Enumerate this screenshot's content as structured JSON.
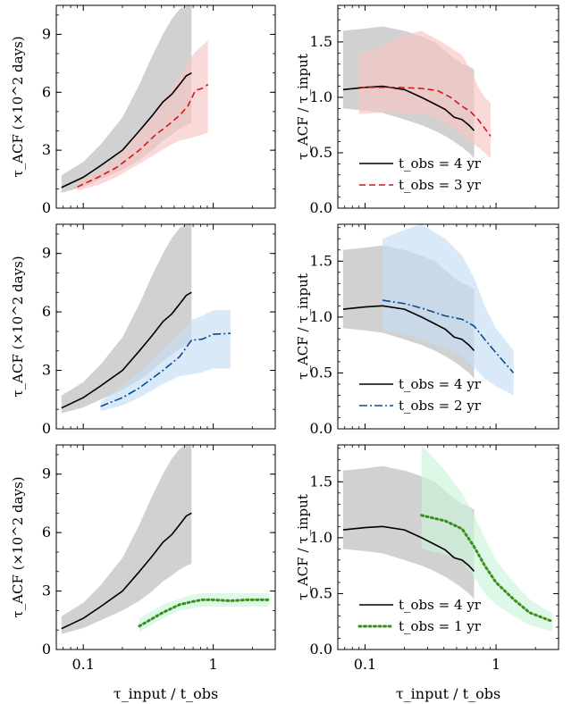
{
  "chart_data": [
    {
      "type": "line",
      "panel": "row1-left",
      "ylabel": "τ_ACF (×10^2 days)",
      "yticks": [
        "0",
        "3",
        "6",
        "9"
      ],
      "ylim": [
        0,
        10.5
      ],
      "xscale": "log",
      "xlim": [
        0.062,
        3.0
      ],
      "series": [
        {
          "label": "t_obs = 4 yr",
          "style": "solid",
          "color": "#000000",
          "band_color": "#bdbdbd",
          "x": [
            0.068,
            0.1,
            0.136,
            0.2,
            0.27,
            0.34,
            0.41,
            0.48,
            0.55,
            0.62,
            0.68
          ],
          "y": [
            1.07,
            1.6,
            2.2,
            3.0,
            4.0,
            4.8,
            5.5,
            5.9,
            6.4,
            6.85,
            7.0
          ],
          "band_lo": [
            0.8,
            1.1,
            1.5,
            2.0,
            2.5,
            3.0,
            3.5,
            3.8,
            4.1,
            4.3,
            4.4
          ],
          "band_hi": [
            1.7,
            2.4,
            3.3,
            4.7,
            6.4,
            7.9,
            9.0,
            9.8,
            10.3,
            10.5,
            10.5
          ]
        },
        {
          "label": "t_obs = 3 yr",
          "style": "dashed",
          "color": "#d61515",
          "band_color": "#f7c6c3",
          "x": [
            0.09,
            0.13,
            0.18,
            0.27,
            0.36,
            0.45,
            0.55,
            0.64,
            0.73,
            0.82,
            0.91
          ],
          "y": [
            1.1,
            1.6,
            2.1,
            3.0,
            3.8,
            4.3,
            4.8,
            5.3,
            6.1,
            6.2,
            6.4
          ],
          "band_lo": [
            0.9,
            1.2,
            1.6,
            2.3,
            2.8,
            3.2,
            3.5,
            3.6,
            3.7,
            3.8,
            3.9
          ],
          "band_hi": [
            1.2,
            1.9,
            2.6,
            4.0,
            5.1,
            6.0,
            6.9,
            7.6,
            8.1,
            8.4,
            8.7
          ]
        }
      ]
    },
    {
      "type": "line",
      "panel": "row1-right",
      "ylabel": "τ_ACF / τ_input",
      "yticks": [
        "0.0",
        "0.5",
        "1.0",
        "1.5"
      ],
      "ylim": [
        0,
        1.83
      ],
      "xscale": "log",
      "xlim": [
        0.062,
        3.0
      ],
      "legend": "lower-left",
      "series": [
        {
          "label": "t_obs = 4 yr",
          "style": "solid",
          "color": "#000000",
          "band_color": "#bdbdbd",
          "x": [
            0.068,
            0.1,
            0.136,
            0.2,
            0.27,
            0.34,
            0.41,
            0.48,
            0.55,
            0.62,
            0.68
          ],
          "y": [
            1.07,
            1.09,
            1.1,
            1.07,
            1.0,
            0.94,
            0.89,
            0.82,
            0.8,
            0.75,
            0.7
          ],
          "band_lo": [
            0.9,
            0.88,
            0.86,
            0.8,
            0.75,
            0.7,
            0.65,
            0.6,
            0.55,
            0.5,
            0.45
          ],
          "band_hi": [
            1.6,
            1.62,
            1.64,
            1.6,
            1.55,
            1.5,
            1.42,
            1.35,
            1.3,
            1.28,
            1.25
          ]
        },
        {
          "label": "t_obs = 3 yr",
          "style": "dashed",
          "color": "#d61515",
          "band_color": "#f7c6c3",
          "x": [
            0.09,
            0.13,
            0.18,
            0.27,
            0.36,
            0.45,
            0.55,
            0.64,
            0.73,
            0.82,
            0.91
          ],
          "y": [
            1.09,
            1.09,
            1.09,
            1.08,
            1.06,
            1.0,
            0.92,
            0.87,
            0.8,
            0.72,
            0.65
          ],
          "band_lo": [
            0.85,
            0.86,
            0.86,
            0.85,
            0.8,
            0.73,
            0.66,
            0.6,
            0.55,
            0.5,
            0.45
          ],
          "band_hi": [
            1.4,
            1.45,
            1.55,
            1.6,
            1.52,
            1.45,
            1.38,
            1.25,
            1.1,
            1.0,
            0.95
          ]
        }
      ]
    },
    {
      "type": "line",
      "panel": "row2-left",
      "ylabel": "τ_ACF (×10^2 days)",
      "yticks": [
        "0",
        "3",
        "6",
        "9"
      ],
      "ylim": [
        0,
        10.5
      ],
      "xscale": "log",
      "xlim": [
        0.062,
        3.0
      ],
      "series": [
        {
          "label": "t_obs = 4 yr",
          "style": "solid",
          "color": "#000000",
          "band_color": "#bdbdbd",
          "x": [
            0.068,
            0.1,
            0.136,
            0.2,
            0.27,
            0.34,
            0.41,
            0.48,
            0.55,
            0.62,
            0.68
          ],
          "y": [
            1.07,
            1.6,
            2.2,
            3.0,
            4.0,
            4.8,
            5.5,
            5.9,
            6.4,
            6.85,
            7.0
          ],
          "band_lo": [
            0.8,
            1.1,
            1.5,
            2.0,
            2.5,
            3.0,
            3.5,
            3.8,
            4.1,
            4.3,
            4.4
          ],
          "band_hi": [
            1.7,
            2.4,
            3.3,
            4.7,
            6.4,
            7.9,
            9.0,
            9.8,
            10.3,
            10.5,
            10.5
          ]
        },
        {
          "label": "t_obs = 2 yr",
          "style": "dashdot",
          "color": "#0b4a8f",
          "band_color": "#c6ddf5",
          "x": [
            0.136,
            0.2,
            0.27,
            0.41,
            0.55,
            0.68,
            0.82,
            1.0,
            1.36
          ],
          "y": [
            1.15,
            1.6,
            2.1,
            3.0,
            3.7,
            4.55,
            4.6,
            4.85,
            4.9
          ],
          "band_lo": [
            0.9,
            1.2,
            1.6,
            2.3,
            2.7,
            2.8,
            2.9,
            3.1,
            3.1
          ],
          "band_hi": [
            1.4,
            2.2,
            2.9,
            4.1,
            4.9,
            5.6,
            5.8,
            6.1,
            6.1
          ]
        }
      ]
    },
    {
      "type": "line",
      "panel": "row2-right",
      "ylabel": "τ_ACF / τ_input",
      "yticks": [
        "0.0",
        "0.5",
        "1.0",
        "1.5"
      ],
      "ylim": [
        0,
        1.83
      ],
      "xscale": "log",
      "xlim": [
        0.062,
        3.0
      ],
      "legend": "lower-left",
      "series": [
        {
          "label": "t_obs = 4 yr",
          "style": "solid",
          "color": "#000000",
          "band_color": "#bdbdbd",
          "x": [
            0.068,
            0.1,
            0.136,
            0.2,
            0.27,
            0.34,
            0.41,
            0.48,
            0.55,
            0.62,
            0.68
          ],
          "y": [
            1.07,
            1.09,
            1.1,
            1.07,
            1.0,
            0.94,
            0.89,
            0.82,
            0.8,
            0.75,
            0.7
          ],
          "band_lo": [
            0.9,
            0.88,
            0.86,
            0.8,
            0.75,
            0.7,
            0.65,
            0.6,
            0.55,
            0.5,
            0.45
          ],
          "band_hi": [
            1.6,
            1.62,
            1.64,
            1.6,
            1.55,
            1.5,
            1.42,
            1.35,
            1.3,
            1.28,
            1.25
          ]
        },
        {
          "label": "t_obs = 2 yr",
          "style": "dashdot",
          "color": "#0b4a8f",
          "band_color": "#c6ddf5",
          "x": [
            0.136,
            0.2,
            0.27,
            0.41,
            0.55,
            0.68,
            0.82,
            1.0,
            1.36
          ],
          "y": [
            1.15,
            1.12,
            1.08,
            1.01,
            0.98,
            0.92,
            0.8,
            0.68,
            0.5
          ],
          "band_lo": [
            0.88,
            0.85,
            0.8,
            0.72,
            0.65,
            0.55,
            0.45,
            0.38,
            0.3
          ],
          "band_hi": [
            1.7,
            1.78,
            1.83,
            1.7,
            1.55,
            1.35,
            1.1,
            0.9,
            0.7
          ]
        }
      ]
    },
    {
      "type": "line",
      "panel": "row3-left",
      "ylabel": "τ_ACF (×10^2 days)",
      "yticks": [
        "0",
        "3",
        "6",
        "9"
      ],
      "ylim": [
        0,
        10.5
      ],
      "xscale": "log",
      "xlim": [
        0.062,
        3.0
      ],
      "xlabel": "τ_input / t_obs",
      "xticks": [
        "0.1",
        "1"
      ],
      "series": [
        {
          "label": "t_obs = 4 yr",
          "style": "solid",
          "color": "#000000",
          "band_color": "#bdbdbd",
          "x": [
            0.068,
            0.1,
            0.136,
            0.2,
            0.27,
            0.34,
            0.41,
            0.48,
            0.55,
            0.62,
            0.68
          ],
          "y": [
            1.07,
            1.6,
            2.2,
            3.0,
            4.0,
            4.8,
            5.5,
            5.9,
            6.4,
            6.85,
            7.0
          ],
          "band_lo": [
            0.8,
            1.1,
            1.5,
            2.0,
            2.5,
            3.0,
            3.5,
            3.8,
            4.1,
            4.3,
            4.4
          ],
          "band_hi": [
            1.7,
            2.4,
            3.3,
            4.7,
            6.4,
            7.9,
            9.0,
            9.8,
            10.3,
            10.5,
            10.5
          ]
        },
        {
          "label": "t_obs = 1 yr",
          "style": "dotted",
          "color": "#3a8f1c",
          "band_color": "#cdf5dc",
          "x": [
            0.27,
            0.41,
            0.55,
            0.68,
            0.82,
            1.0,
            1.36,
            1.8,
            2.7
          ],
          "y": [
            1.2,
            1.9,
            2.3,
            2.45,
            2.55,
            2.55,
            2.5,
            2.55,
            2.55
          ],
          "band_lo": [
            0.9,
            1.6,
            2.0,
            2.1,
            2.2,
            2.2,
            2.2,
            2.2,
            2.2
          ],
          "band_hi": [
            1.6,
            2.3,
            2.6,
            2.8,
            2.9,
            2.9,
            2.9,
            2.9,
            2.9
          ]
        }
      ]
    },
    {
      "type": "line",
      "panel": "row3-right",
      "ylabel": "τ_ACF / τ_input",
      "yticks": [
        "0.0",
        "0.5",
        "1.0",
        "1.5"
      ],
      "ylim": [
        0,
        1.83
      ],
      "xscale": "log",
      "xlim": [
        0.062,
        3.0
      ],
      "xlabel": "τ_input / t_obs",
      "xticks": [
        "0.1",
        "1"
      ],
      "legend": "lower-left",
      "series": [
        {
          "label": "t_obs = 4 yr",
          "style": "solid",
          "color": "#000000",
          "band_color": "#bdbdbd",
          "x": [
            0.068,
            0.1,
            0.136,
            0.2,
            0.27,
            0.34,
            0.41,
            0.48,
            0.55,
            0.62,
            0.68
          ],
          "y": [
            1.07,
            1.09,
            1.1,
            1.07,
            1.0,
            0.94,
            0.89,
            0.82,
            0.8,
            0.75,
            0.7
          ],
          "band_lo": [
            0.9,
            0.88,
            0.86,
            0.8,
            0.75,
            0.7,
            0.65,
            0.6,
            0.55,
            0.5,
            0.45
          ],
          "band_hi": [
            1.6,
            1.62,
            1.64,
            1.6,
            1.55,
            1.5,
            1.42,
            1.35,
            1.3,
            1.28,
            1.25
          ]
        },
        {
          "label": "t_obs = 1 yr",
          "style": "dotted",
          "color": "#3a8f1c",
          "band_color": "#cdf5dc",
          "x": [
            0.27,
            0.41,
            0.55,
            0.68,
            0.82,
            1.0,
            1.36,
            1.8,
            2.7
          ],
          "y": [
            1.2,
            1.15,
            1.08,
            0.92,
            0.75,
            0.6,
            0.45,
            0.33,
            0.25
          ],
          "band_lo": [
            0.9,
            0.85,
            0.8,
            0.65,
            0.5,
            0.4,
            0.3,
            0.22,
            0.16
          ],
          "band_hi": [
            1.83,
            1.6,
            1.4,
            1.2,
            1.0,
            0.8,
            0.6,
            0.45,
            0.32
          ]
        }
      ]
    }
  ]
}
